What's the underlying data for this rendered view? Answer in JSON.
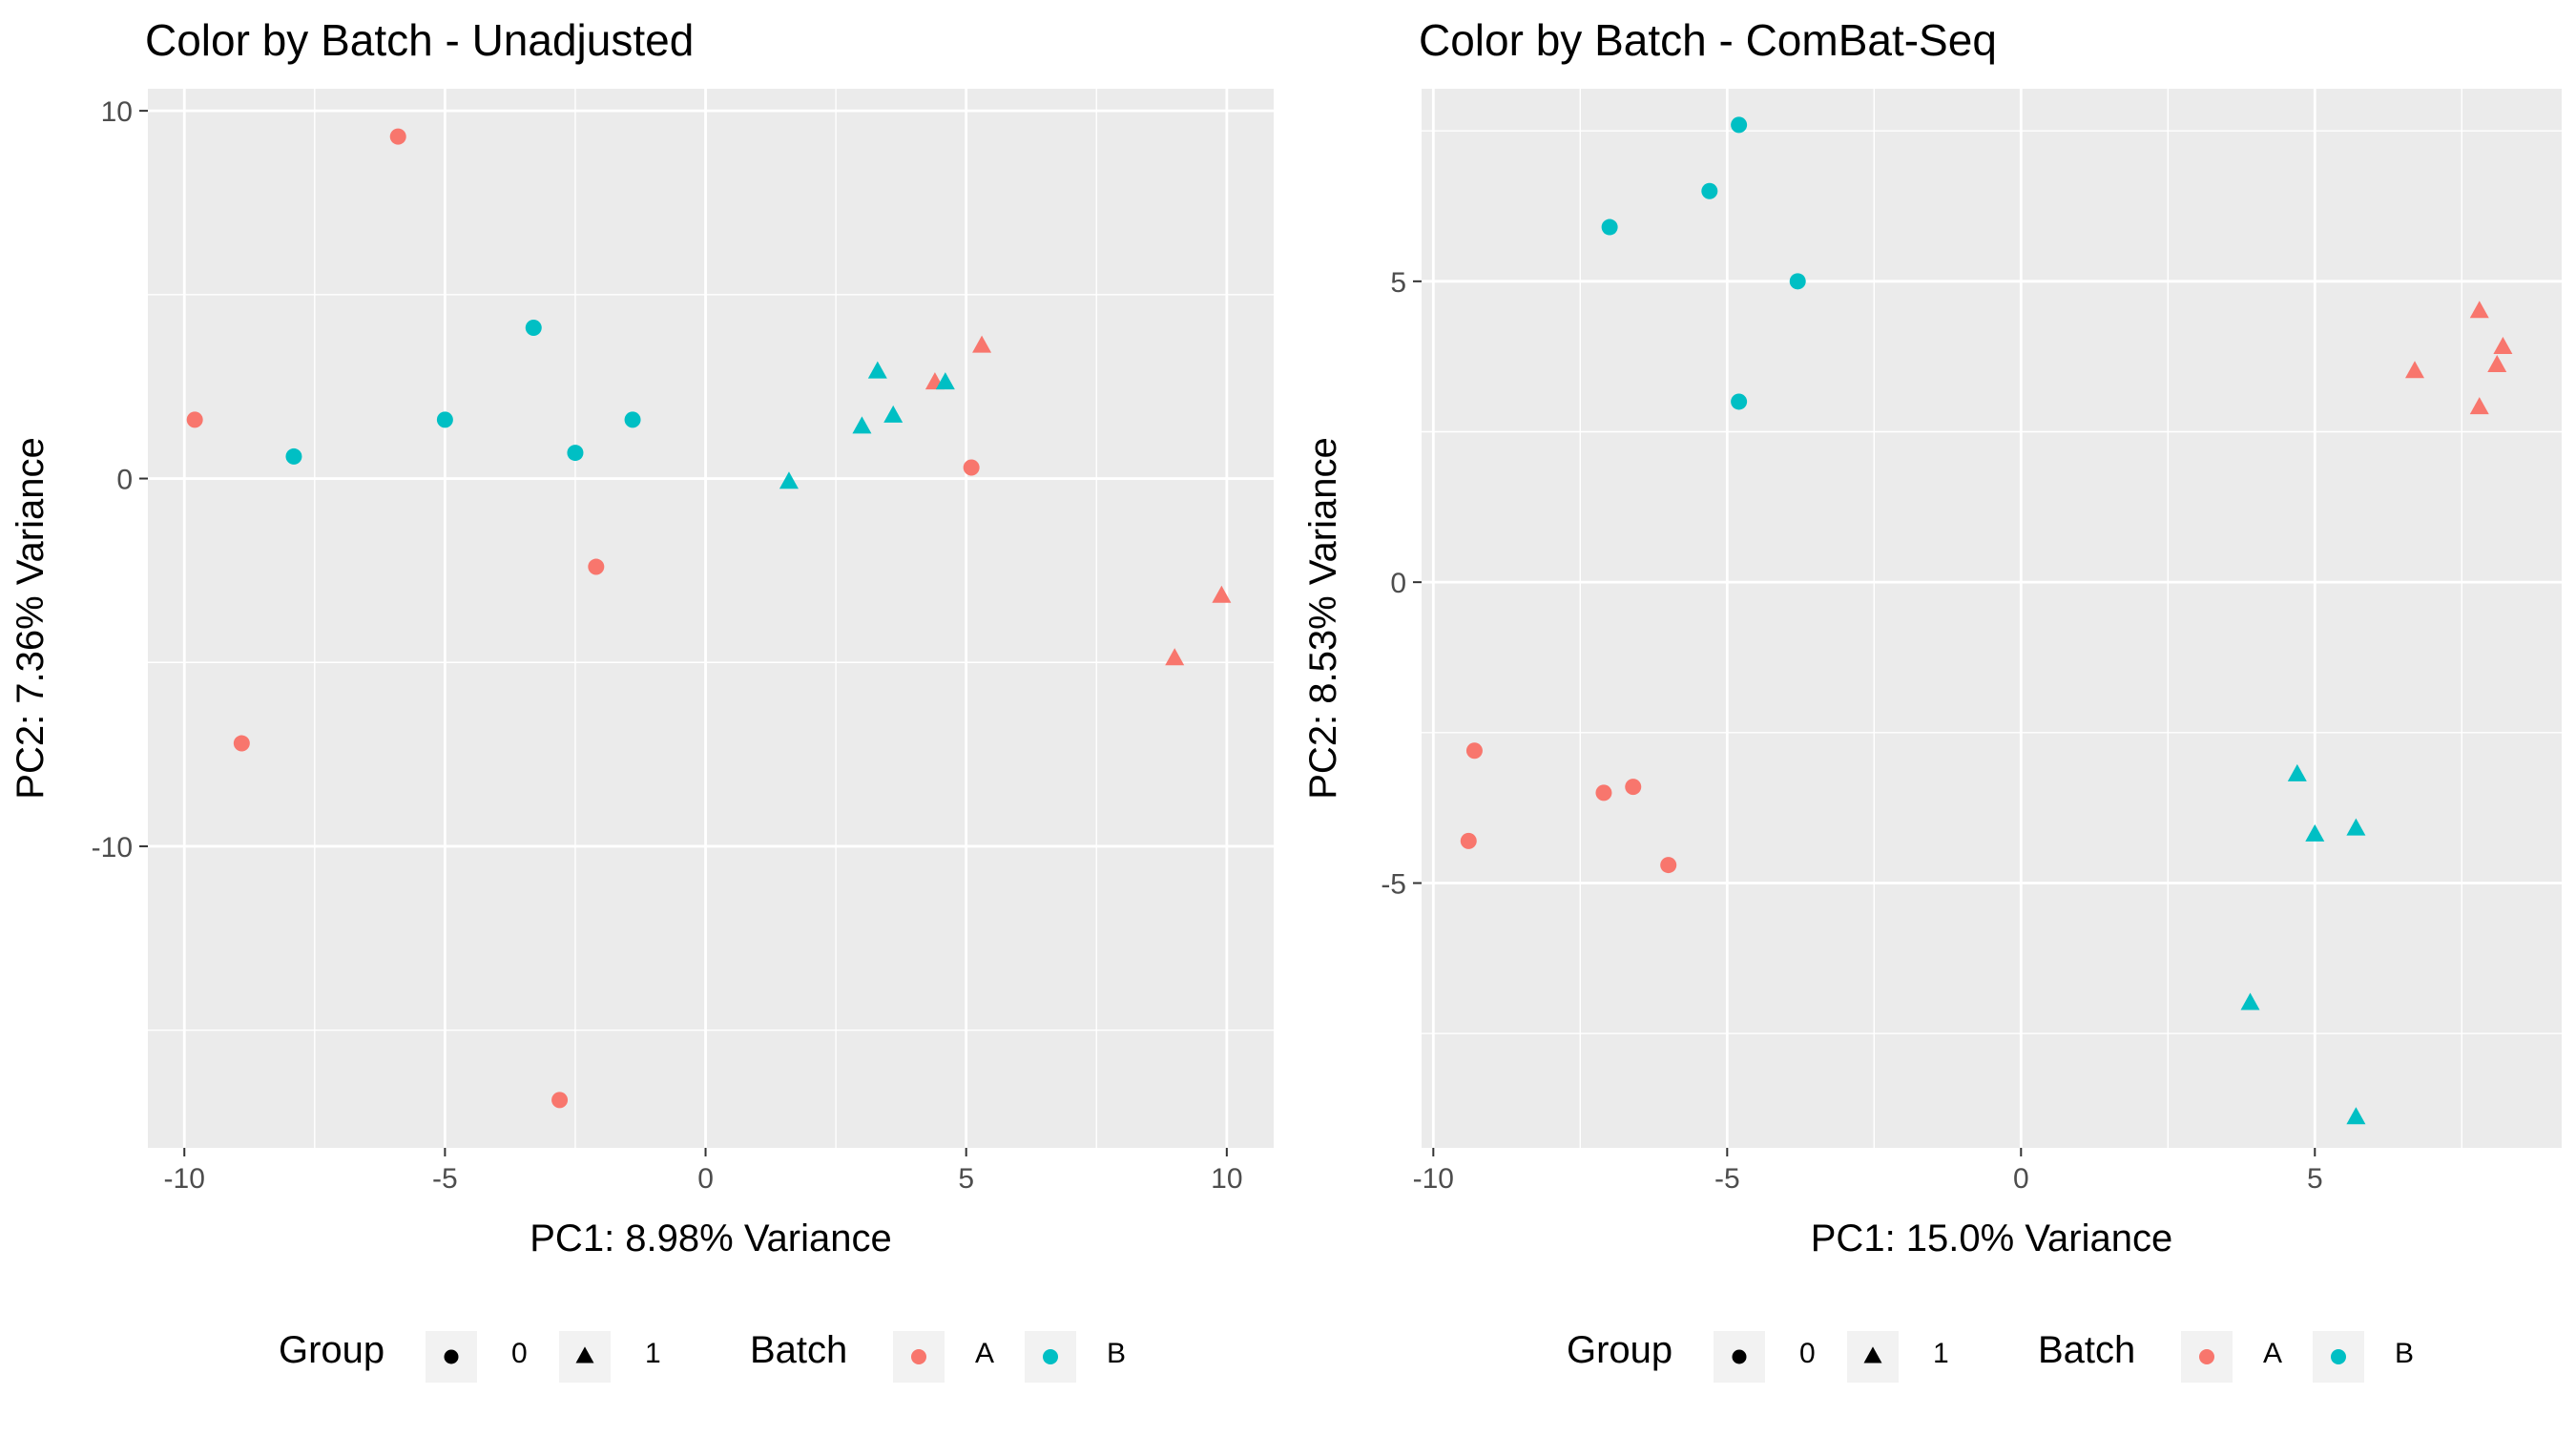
{
  "colors": {
    "panel_bg": "#EBEBEB",
    "grid": "#FFFFFF",
    "tick": "#333333",
    "batch_A": "#F8766D",
    "batch_B": "#00BFC4",
    "legend_key_bg": "#F2F2F2",
    "legend_mark": "#000000"
  },
  "chart_data": [
    {
      "type": "scatter",
      "title": "Color by Batch - Unadjusted",
      "xlabel": "PC1: 8.98% Variance",
      "ylabel": "PC2: 7.36% Variance",
      "xlim": [
        -10.7,
        10.9
      ],
      "ylim": [
        -18.2,
        10.6
      ],
      "xticks": [
        -10,
        -5,
        0,
        5,
        10
      ],
      "xtick_labels": [
        "-10",
        "-5",
        "0",
        "5",
        "10"
      ],
      "yticks": [
        -10,
        0,
        10
      ],
      "ytick_labels": [
        "-10",
        "0",
        "10"
      ],
      "grid": true,
      "legend": {
        "position": "bottom",
        "group_title": "Group",
        "group_labels": [
          "0",
          "1"
        ],
        "batch_title": "Batch",
        "batch_labels": [
          "A",
          "B"
        ]
      },
      "points": [
        {
          "x": -5.9,
          "y": 9.3,
          "group": "0",
          "batch": "A"
        },
        {
          "x": -9.8,
          "y": 1.6,
          "group": "0",
          "batch": "A"
        },
        {
          "x": -8.9,
          "y": -7.2,
          "group": "0",
          "batch": "A"
        },
        {
          "x": -2.1,
          "y": -2.4,
          "group": "0",
          "batch": "A"
        },
        {
          "x": -2.8,
          "y": -16.9,
          "group": "0",
          "batch": "A"
        },
        {
          "x": -7.9,
          "y": 0.6,
          "group": "0",
          "batch": "B"
        },
        {
          "x": -5.0,
          "y": 1.6,
          "group": "0",
          "batch": "B"
        },
        {
          "x": -3.3,
          "y": 4.1,
          "group": "0",
          "batch": "B"
        },
        {
          "x": -2.5,
          "y": 0.7,
          "group": "0",
          "batch": "B"
        },
        {
          "x": -1.4,
          "y": 1.6,
          "group": "0",
          "batch": "B"
        },
        {
          "x": 5.1,
          "y": 0.3,
          "group": "0",
          "batch": "A"
        },
        {
          "x": 5.3,
          "y": 3.6,
          "group": "1",
          "batch": "A"
        },
        {
          "x": 4.4,
          "y": 2.6,
          "group": "1",
          "batch": "A"
        },
        {
          "x": 9.0,
          "y": -4.9,
          "group": "1",
          "batch": "A"
        },
        {
          "x": 9.9,
          "y": -3.2,
          "group": "1",
          "batch": "A"
        },
        {
          "x": 1.6,
          "y": -0.1,
          "group": "1",
          "batch": "B"
        },
        {
          "x": 3.0,
          "y": 1.4,
          "group": "1",
          "batch": "B"
        },
        {
          "x": 3.3,
          "y": 2.9,
          "group": "1",
          "batch": "B"
        },
        {
          "x": 3.6,
          "y": 1.7,
          "group": "1",
          "batch": "B"
        },
        {
          "x": 4.6,
          "y": 2.6,
          "group": "1",
          "batch": "B"
        }
      ]
    },
    {
      "type": "scatter",
      "title": "Color by Batch - ComBat-Seq",
      "xlabel": "PC1: 15.0% Variance",
      "ylabel": "PC2: 8.53% Variance",
      "xlim": [
        -10.2,
        9.2
      ],
      "ylim": [
        -9.4,
        8.2
      ],
      "xticks": [
        -10,
        -5,
        0,
        5
      ],
      "xtick_labels": [
        "-10",
        "-5",
        "0",
        "5"
      ],
      "yticks": [
        -5,
        0,
        5
      ],
      "ytick_labels": [
        "-5",
        "0",
        "5"
      ],
      "grid": true,
      "legend": {
        "position": "bottom",
        "group_title": "Group",
        "group_labels": [
          "0",
          "1"
        ],
        "batch_title": "Batch",
        "batch_labels": [
          "A",
          "B"
        ]
      },
      "points": [
        {
          "x": -4.8,
          "y": 7.6,
          "group": "0",
          "batch": "B"
        },
        {
          "x": -5.3,
          "y": 6.5,
          "group": "0",
          "batch": "B"
        },
        {
          "x": -7.0,
          "y": 5.9,
          "group": "0",
          "batch": "B"
        },
        {
          "x": -3.8,
          "y": 5.0,
          "group": "0",
          "batch": "B"
        },
        {
          "x": -4.8,
          "y": 3.0,
          "group": "0",
          "batch": "B"
        },
        {
          "x": -9.3,
          "y": -2.8,
          "group": "0",
          "batch": "A"
        },
        {
          "x": -7.1,
          "y": -3.5,
          "group": "0",
          "batch": "A"
        },
        {
          "x": -6.6,
          "y": -3.4,
          "group": "0",
          "batch": "A"
        },
        {
          "x": -9.4,
          "y": -4.3,
          "group": "0",
          "batch": "A"
        },
        {
          "x": -6.0,
          "y": -4.7,
          "group": "0",
          "batch": "A"
        },
        {
          "x": 7.8,
          "y": 4.5,
          "group": "1",
          "batch": "A"
        },
        {
          "x": 8.2,
          "y": 3.9,
          "group": "1",
          "batch": "A"
        },
        {
          "x": 8.1,
          "y": 3.6,
          "group": "1",
          "batch": "A"
        },
        {
          "x": 6.7,
          "y": 3.5,
          "group": "1",
          "batch": "A"
        },
        {
          "x": 7.8,
          "y": 2.9,
          "group": "1",
          "batch": "A"
        },
        {
          "x": 4.7,
          "y": -3.2,
          "group": "1",
          "batch": "B"
        },
        {
          "x": 5.0,
          "y": -4.2,
          "group": "1",
          "batch": "B"
        },
        {
          "x": 5.7,
          "y": -4.1,
          "group": "1",
          "batch": "B"
        },
        {
          "x": 3.9,
          "y": -7.0,
          "group": "1",
          "batch": "B"
        },
        {
          "x": 5.7,
          "y": -8.9,
          "group": "1",
          "batch": "B"
        }
      ]
    }
  ]
}
